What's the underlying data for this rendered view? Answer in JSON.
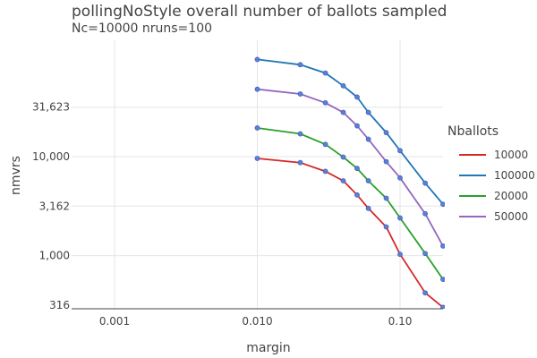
{
  "chart_data": {
    "type": "line",
    "title": "pollingNoStyle overall number of ballots sampled",
    "subtitle": "Nc=10000 nruns=100",
    "xlabel": "margin",
    "ylabel": "nmvrs",
    "x_scale": "log",
    "y_scale": "log",
    "xlim": [
      0.0005,
      0.2
    ],
    "ylim": [
      290,
      150000
    ],
    "x_ticks": [
      {
        "value": 0.001,
        "label": "0.001"
      },
      {
        "value": 0.01,
        "label": "0.010"
      },
      {
        "value": 0.1,
        "label": "0.10"
      }
    ],
    "y_ticks": [
      {
        "value": 316,
        "label": "316"
      },
      {
        "value": 1000,
        "label": "1,000"
      },
      {
        "value": 3162,
        "label": "3,162"
      },
      {
        "value": 10000,
        "label": "10,000"
      },
      {
        "value": 31623,
        "label": "31,623"
      }
    ],
    "grid": true,
    "legend_title": "Nballots",
    "legend_position": "right",
    "x": [
      0.01,
      0.02,
      0.03,
      0.04,
      0.05,
      0.06,
      0.08,
      0.1,
      0.15,
      0.2
    ],
    "series": [
      {
        "name": "10000",
        "color": "#d62728",
        "values": [
          9600,
          8700,
          7100,
          5700,
          4100,
          3000,
          1950,
          1030,
          420,
          300
        ]
      },
      {
        "name": "100000",
        "color": "#1f77b4",
        "values": [
          96000,
          85000,
          70000,
          52000,
          40000,
          28000,
          17500,
          11500,
          5400,
          3300
        ]
      },
      {
        "name": "20000",
        "color": "#2ca02c",
        "values": [
          19500,
          17000,
          13300,
          9900,
          7600,
          5700,
          3800,
          2400,
          1050,
          575
        ]
      },
      {
        "name": "50000",
        "color": "#9467bd",
        "values": [
          48000,
          43000,
          35000,
          28000,
          20500,
          15000,
          8900,
          6100,
          2650,
          1250
        ]
      }
    ],
    "marker_color": "#5b7fd6"
  }
}
